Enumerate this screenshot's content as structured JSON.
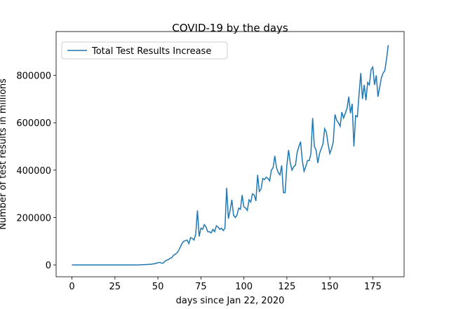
{
  "chart_data": {
    "type": "line",
    "title": "COVID-19 by the days",
    "xlabel": "days since Jan 22, 2020",
    "ylabel": "Number of test results in millions",
    "x": [
      0,
      1,
      2,
      3,
      4,
      5,
      6,
      7,
      8,
      9,
      10,
      11,
      12,
      13,
      14,
      15,
      16,
      17,
      18,
      19,
      20,
      21,
      22,
      23,
      24,
      25,
      26,
      27,
      28,
      29,
      30,
      31,
      32,
      33,
      34,
      35,
      36,
      37,
      38,
      39,
      40,
      41,
      42,
      43,
      44,
      45,
      46,
      47,
      48,
      49,
      50,
      51,
      52,
      53,
      54,
      55,
      56,
      57,
      58,
      59,
      60,
      61,
      62,
      63,
      64,
      65,
      66,
      67,
      68,
      69,
      70,
      71,
      72,
      73,
      74,
      75,
      76,
      77,
      78,
      79,
      80,
      81,
      82,
      83,
      84,
      85,
      86,
      87,
      88,
      89,
      90,
      91,
      92,
      93,
      94,
      95,
      96,
      97,
      98,
      99,
      100,
      101,
      102,
      103,
      104,
      105,
      106,
      107,
      108,
      109,
      110,
      111,
      112,
      113,
      114,
      115,
      116,
      117,
      118,
      119,
      120,
      121,
      122,
      123,
      124,
      125,
      126,
      127,
      128,
      129,
      130,
      131,
      132,
      133,
      134,
      135,
      136,
      137,
      138,
      139,
      140,
      141,
      142,
      143,
      144,
      145,
      146,
      147,
      148,
      149,
      150,
      151,
      152,
      153,
      154,
      155,
      156,
      157,
      158,
      159,
      160,
      161,
      162,
      163,
      164,
      165,
      166,
      167,
      168,
      169,
      170,
      171,
      172,
      173,
      174,
      175,
      176,
      177,
      178,
      179,
      180,
      181,
      182,
      183,
      184
    ],
    "series": [
      {
        "name": "Total Test Results Increase",
        "color": "#1f77b4",
        "values": [
          0,
          0,
          0,
          0,
          0,
          0,
          0,
          0,
          0,
          0,
          0,
          0,
          0,
          0,
          0,
          0,
          0,
          0,
          0,
          0,
          0,
          0,
          0,
          0,
          0,
          0,
          0,
          0,
          0,
          0,
          0,
          0,
          0,
          0,
          0,
          0,
          0,
          0,
          0,
          0,
          500,
          1000,
          1500,
          1500,
          2000,
          2500,
          3000,
          4000,
          5000,
          7000,
          9000,
          11000,
          8000,
          7000,
          15000,
          20000,
          22000,
          28000,
          30000,
          40000,
          45000,
          50000,
          60000,
          75000,
          90000,
          100000,
          102000,
          105000,
          90000,
          115000,
          112000,
          105000,
          130000,
          230000,
          120000,
          155000,
          150000,
          170000,
          160000,
          140000,
          140000,
          135000,
          150000,
          140000,
          165000,
          160000,
          150000,
          155000,
          145000,
          155000,
          325000,
          195000,
          230000,
          275000,
          210000,
          200000,
          210000,
          240000,
          235000,
          295000,
          245000,
          240000,
          230000,
          275000,
          265000,
          300000,
          295000,
          270000,
          380000,
          310000,
          320000,
          365000,
          360000,
          370000,
          365000,
          355000,
          400000,
          410000,
          460000,
          410000,
          390000,
          380000,
          420000,
          305000,
          305000,
          420000,
          485000,
          430000,
          400000,
          415000,
          420000,
          475000,
          500000,
          520000,
          440000,
          395000,
          415000,
          440000,
          440000,
          470000,
          620000,
          500000,
          485000,
          430000,
          470000,
          490000,
          510000,
          575000,
          560000,
          510000,
          470000,
          490000,
          520000,
          635000,
          610000,
          600000,
          585000,
          645000,
          620000,
          640000,
          660000,
          710000,
          640000,
          680000,
          500000,
          630000,
          625000,
          720000,
          810000,
          700000,
          760000,
          695000,
          770000,
          760000,
          825000,
          835000,
          760000,
          800000,
          710000,
          750000,
          790000,
          810000,
          820000,
          870000,
          928000
        ]
      }
    ],
    "xlim": [
      -9.2,
      193.2
    ],
    "ylim": [
      -50000,
      985000
    ],
    "xticks": [
      0,
      25,
      50,
      75,
      100,
      125,
      150,
      175
    ],
    "yticks": [
      0,
      200000,
      400000,
      600000,
      800000
    ],
    "legend": "upper left",
    "grid": false
  }
}
